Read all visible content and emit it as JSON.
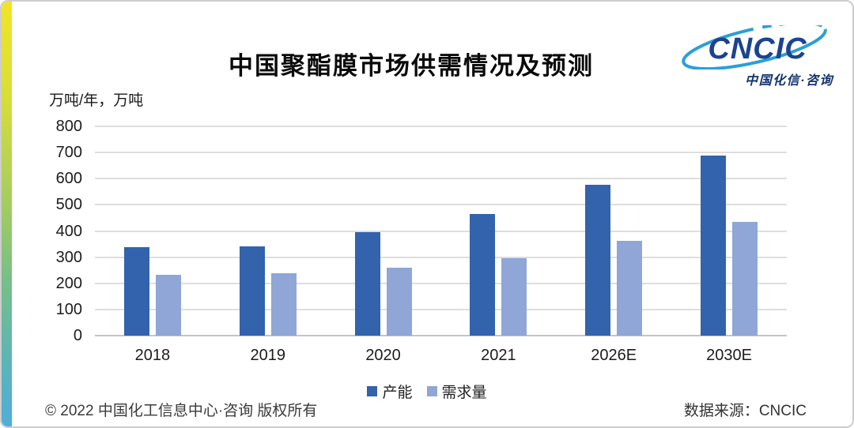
{
  "header": {
    "title": "中国聚酯膜市场供需情况及预测",
    "logo": {
      "name": "CNCIC",
      "subtitle": "中国化信·咨询",
      "text_color": "#1b4390",
      "swoosh_color": "#2b9fd8"
    }
  },
  "chart_data": {
    "type": "bar",
    "title": "中国聚酯膜市场供需情况及预测",
    "unit_label": "万吨/年，万吨",
    "categories": [
      "2018",
      "2019",
      "2020",
      "2021",
      "2026E",
      "2030E"
    ],
    "series": [
      {
        "name": "产能",
        "color": "#3263ac",
        "values": [
          338,
          341,
          397,
          464,
          576,
          687
        ]
      },
      {
        "name": "需求量",
        "color": "#8fa6d6",
        "values": [
          234,
          238,
          260,
          296,
          362,
          435
        ]
      }
    ],
    "ylim": [
      0,
      800
    ],
    "ytick_step": 100,
    "grid": true,
    "legend_position": "bottom"
  },
  "footer": {
    "copyright": "© 2022 中国化工信息中心·咨询 版权所有",
    "source": "数据来源：CNCIC"
  }
}
